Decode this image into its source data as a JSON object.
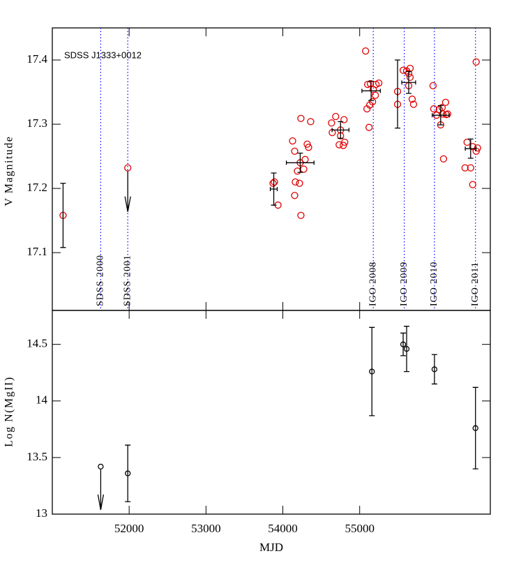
{
  "chart_data": [
    {
      "type": "scatter",
      "ylabel": "V Magnitude",
      "annotation": "SDSS J1333+0012",
      "xlim": [
        51000,
        56700
      ],
      "ylim": [
        17.01,
        17.45
      ],
      "yticks": [
        17.1,
        17.2,
        17.3,
        17.4
      ],
      "events": [
        {
          "label": "SDSS 2000",
          "x": 51630,
          "color": "#0000ff"
        },
        {
          "label": "SDSS 2001",
          "x": 51982,
          "color": "#0000ff"
        },
        {
          "label": "IGO 2008",
          "x": 55177,
          "color": "#0000ff"
        },
        {
          "label": "IGO 2009",
          "x": 55580,
          "color": "#0000ff"
        },
        {
          "label": "IGO 2010",
          "x": 55973,
          "color": "#0000ff"
        },
        {
          "label": "IGO 2011",
          "x": 56507,
          "color": "#0000ff"
        }
      ],
      "series": [
        {
          "marker": "circle",
          "color": "#e00000",
          "x": [
            51140,
            51982,
            53873,
            53891,
            53937,
            54127,
            54154,
            54190,
            54163,
            54217,
            54226,
            54272,
            54290,
            54154,
            54235,
            54235,
            54317,
            54335,
            54362,
            54634,
            54688,
            54643,
            54751,
            54796,
            54733,
            54787,
            54805,
            54751,
            55077,
            55104,
            55095,
            55122,
            55140,
            55177,
            55204,
            55213,
            55249,
            55131,
            55167,
            55493,
            55493,
            55566,
            55611,
            55638,
            55656,
            55656,
            55638,
            55683,
            55701,
            55955,
            55964,
            56000,
            56036,
            56054,
            56073,
            56082,
            56118,
            56127,
            56091,
            56145,
            56371,
            56398,
            56444,
            56471,
            56471,
            56516,
            56534,
            56516
          ],
          "values": [
            17.158,
            17.232,
            17.208,
            17.21,
            17.174,
            17.274,
            17.258,
            17.227,
            17.21,
            17.208,
            17.24,
            17.23,
            17.245,
            17.189,
            17.158,
            17.309,
            17.269,
            17.264,
            17.304,
            17.302,
            17.312,
            17.287,
            17.291,
            17.307,
            17.268,
            17.267,
            17.272,
            17.282,
            17.414,
            17.362,
            17.324,
            17.295,
            17.363,
            17.354,
            17.345,
            17.362,
            17.364,
            17.33,
            17.335,
            17.351,
            17.331,
            17.384,
            17.383,
            17.379,
            17.387,
            17.373,
            17.36,
            17.339,
            17.331,
            17.36,
            17.324,
            17.314,
            17.323,
            17.299,
            17.326,
            17.316,
            17.334,
            17.315,
            17.246,
            17.316,
            17.232,
            17.272,
            17.232,
            17.265,
            17.206,
            17.258,
            17.263,
            17.397
          ]
        },
        {
          "marker": "cross",
          "color": "#000000",
          "x": [
            51140,
            53882,
            54226,
            54751,
            55149,
            55493,
            55638,
            56054,
            56444
          ],
          "values": [
            17.158,
            17.199,
            17.24,
            17.291,
            17.352,
            17.347,
            17.365,
            17.314,
            17.262
          ],
          "xerr": [
            0,
            45,
            180,
            110,
            120,
            0,
            90,
            110,
            70
          ],
          "yerr": [
            0.05,
            0.025,
            0.015,
            0.013,
            0.015,
            0.053,
            0.017,
            0.015,
            0.015
          ]
        },
        {
          "marker": "arrow",
          "color": "#000000",
          "x": [
            51982
          ],
          "values": [
            17.232
          ]
        }
      ]
    },
    {
      "type": "scatter",
      "ylabel": "Log N(MgII)",
      "xlabel": "MJD",
      "xlim": [
        51000,
        56700
      ],
      "ylim": [
        13,
        14.8
      ],
      "xticks": [
        52000,
        53000,
        54000,
        55000
      ],
      "yticks": [
        13,
        13.5,
        14,
        14.5
      ],
      "series": [
        {
          "marker": "circle-arrow",
          "color": "#000000",
          "x": [
            51630
          ],
          "values": [
            13.42
          ]
        },
        {
          "marker": "circle-err",
          "color": "#000000",
          "x": [
            51982,
            55159,
            55566,
            55611,
            55973,
            56507
          ],
          "values": [
            13.36,
            14.26,
            14.5,
            14.46,
            14.28,
            13.76
          ],
          "yerr": [
            0.25,
            0.39,
            0.1,
            0.2,
            0.13,
            0.36
          ]
        }
      ]
    }
  ]
}
